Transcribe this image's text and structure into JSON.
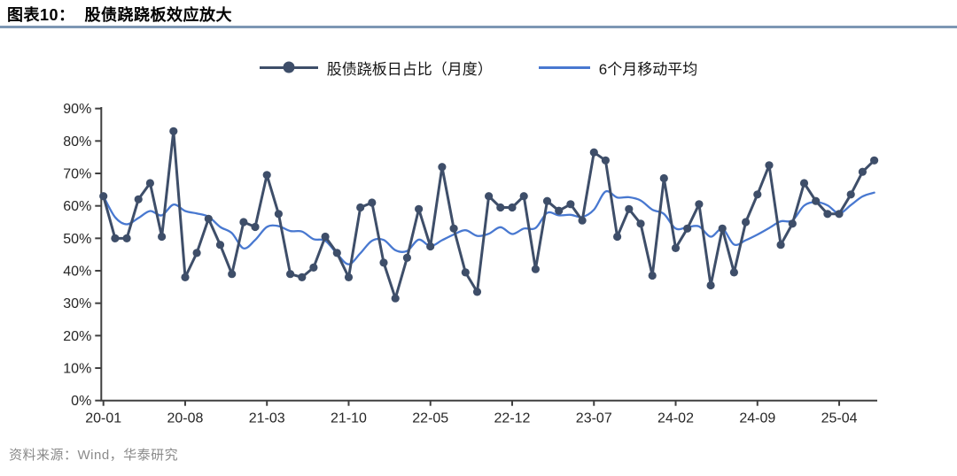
{
  "header": {
    "title": "图表10：  股债跷跷板效应放大"
  },
  "legend": {
    "series_label": "股债跷板日占比（月度）",
    "ma_label": "6个月移动平均"
  },
  "footer": {
    "source": "资料来源：Wind，华泰研究"
  },
  "colors": {
    "series_line": "#3E4E69",
    "ma_line": "#4878D0",
    "title_rule": "#7d97b4",
    "axis": "#3f3f3f",
    "tick_text": "#262626",
    "source_text": "#8a8a8a"
  },
  "chart_data": {
    "type": "line",
    "title": "股债跷跷板效应放大",
    "x_unit": "month",
    "x_start": "2020-01",
    "x_end": "2025-07",
    "x_tick_labels": [
      "20-01",
      "20-08",
      "21-03",
      "21-10",
      "22-05",
      "22-12",
      "23-07",
      "24-02",
      "24-09",
      "25-04"
    ],
    "x_tick_every": 7,
    "ylim": [
      0,
      90
    ],
    "y_tick_step": 10,
    "y_tick_labels": [
      "0%",
      "10%",
      "20%",
      "30%",
      "40%",
      "50%",
      "60%",
      "70%",
      "80%",
      "90%"
    ],
    "grid": false,
    "legend_position": "top-center",
    "series": [
      {
        "name": "股债跷板日占比（月度）",
        "color": "#3E4E69",
        "marker": "circle",
        "values": [
          63,
          50,
          50,
          62,
          67,
          50.5,
          83,
          38,
          45.5,
          56,
          48,
          39,
          55,
          53.5,
          69.5,
          57.5,
          39,
          38,
          41,
          50.5,
          45.5,
          38,
          59.5,
          61,
          42.5,
          31.5,
          44,
          59,
          47.5,
          72,
          53,
          39.5,
          33.5,
          63,
          59.5,
          59.5,
          63,
          40.5,
          61.5,
          58.5,
          60.5,
          55.5,
          76.5,
          74,
          50.5,
          59,
          54.5,
          38.5,
          68.5,
          47,
          53,
          60.5,
          35.5,
          53,
          39.5,
          55,
          63.5,
          72.5,
          48,
          54.5,
          67,
          61.5,
          57.5,
          57.5,
          63.5,
          70.5,
          74
        ]
      },
      {
        "name": "6个月移动平均",
        "color": "#4878D0",
        "marker": "none",
        "derived": "trailing_6_month_mean_of_first_series_expanding_window_for_first_5_points"
      }
    ]
  }
}
